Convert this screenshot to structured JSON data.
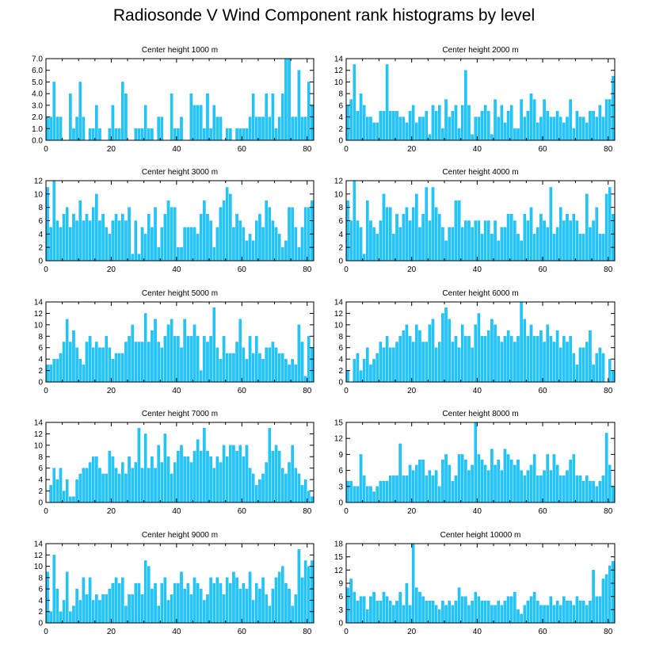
{
  "title": "Radiosonde V Wind Component rank histograms by level",
  "colors": {
    "bar": "#1ec8ff",
    "bar_edge": "#0a9fd6",
    "axis": "#000000"
  },
  "chart_data": [
    {
      "type": "bar",
      "title": "Center height 1000 m",
      "xlim": [
        0,
        82
      ],
      "ylim": [
        0,
        7
      ],
      "xticks": [
        0,
        20,
        40,
        60,
        80
      ],
      "yticks": [
        0,
        1,
        2,
        3,
        4,
        5,
        6,
        7
      ],
      "ytick_labels": [
        "0.0",
        "1.0",
        "2.0",
        "3.0",
        "4.0",
        "5.0",
        "6.0",
        "7.0"
      ],
      "values": [
        2,
        2,
        5,
        2,
        2,
        0,
        0,
        4,
        1,
        2,
        5,
        2,
        0,
        1,
        1,
        3,
        1,
        0,
        0,
        1,
        3,
        1,
        1,
        5,
        4,
        0,
        0,
        1,
        1,
        1,
        3,
        1,
        1,
        0,
        2,
        2,
        0,
        0,
        4,
        1,
        1,
        2,
        0,
        0,
        4,
        3,
        3,
        3,
        1,
        4,
        1,
        3,
        2,
        2,
        0,
        1,
        1,
        0,
        1,
        1,
        1,
        1,
        2,
        4,
        2,
        2,
        2,
        4,
        2,
        4,
        1,
        2,
        4,
        7,
        7,
        2,
        2,
        6,
        2,
        2,
        5,
        3
      ]
    },
    {
      "type": "bar",
      "title": "Center height 2000 m",
      "xlim": [
        0,
        82
      ],
      "ylim": [
        0,
        14
      ],
      "xticks": [
        0,
        20,
        40,
        60,
        80
      ],
      "yticks": [
        0,
        2,
        4,
        6,
        8,
        10,
        12,
        14
      ],
      "values": [
        6,
        7,
        13,
        5,
        8,
        6,
        4,
        4,
        3,
        3,
        5,
        5,
        13,
        5,
        5,
        5,
        4,
        4,
        3,
        5,
        6,
        3,
        4,
        4,
        5,
        1,
        6,
        5,
        6,
        2,
        7,
        4,
        5,
        6,
        2,
        6,
        12,
        6,
        1,
        4,
        4,
        5,
        6,
        5,
        1,
        7,
        4,
        6,
        3,
        5,
        6,
        2,
        2,
        7,
        4,
        5,
        8,
        7,
        3,
        4,
        7,
        5,
        4,
        4,
        5,
        4,
        3,
        4,
        7,
        2,
        5,
        4,
        4,
        3,
        5,
        5,
        4,
        6,
        4,
        7,
        7,
        11
      ]
    },
    {
      "type": "bar",
      "title": "Center height 3000 m",
      "xlim": [
        0,
        82
      ],
      "ylim": [
        0,
        12
      ],
      "xticks": [
        0,
        20,
        40,
        60,
        80
      ],
      "yticks": [
        0,
        2,
        4,
        6,
        8,
        10,
        12
      ],
      "values": [
        11,
        5,
        12,
        6,
        5,
        7,
        8,
        5,
        7,
        6,
        9,
        6,
        7,
        6,
        8,
        10,
        6,
        7,
        5,
        4,
        6,
        7,
        6,
        7,
        6,
        8,
        1,
        6,
        1,
        5,
        4,
        7,
        5,
        8,
        2,
        5,
        7,
        9,
        8,
        8,
        2,
        2,
        5,
        5,
        5,
        5,
        4,
        7,
        9,
        7,
        6,
        2,
        5,
        8,
        9,
        11,
        10,
        5,
        7,
        6,
        5,
        3,
        4,
        3,
        6,
        7,
        5,
        9,
        8,
        6,
        5,
        4,
        2,
        3,
        8,
        8,
        5,
        2,
        5,
        8,
        8,
        9
      ]
    },
    {
      "type": "bar",
      "title": "Center height 4000 m",
      "xlim": [
        0,
        82
      ],
      "ylim": [
        0,
        12
      ],
      "xticks": [
        0,
        20,
        40,
        60,
        80
      ],
      "yticks": [
        0,
        2,
        4,
        6,
        8,
        10,
        12
      ],
      "values": [
        9,
        6,
        12,
        6,
        5,
        1,
        9,
        6,
        5,
        4,
        6,
        10,
        8,
        8,
        4,
        7,
        5,
        7,
        8,
        6,
        8,
        10,
        5,
        7,
        11,
        6,
        11,
        8,
        7,
        5,
        3,
        5,
        5,
        9,
        9,
        5,
        6,
        6,
        5,
        6,
        6,
        4,
        6,
        6,
        4,
        6,
        3,
        5,
        5,
        7,
        7,
        6,
        4,
        3,
        7,
        6,
        8,
        4,
        5,
        7,
        6,
        5,
        11,
        4,
        5,
        8,
        6,
        7,
        6,
        7,
        6,
        4,
        4,
        10,
        5,
        6,
        8,
        4,
        4,
        10,
        11,
        7
      ]
    },
    {
      "type": "bar",
      "title": "Center height 5000 m",
      "xlim": [
        0,
        82
      ],
      "ylim": [
        0,
        14
      ],
      "xticks": [
        0,
        20,
        40,
        60,
        80
      ],
      "yticks": [
        0,
        2,
        4,
        6,
        8,
        10,
        12,
        14
      ],
      "values": [
        3,
        3,
        4,
        4,
        5,
        7,
        11,
        7,
        9,
        6,
        4,
        3,
        7,
        8,
        6,
        7,
        6,
        6,
        8,
        6,
        4,
        5,
        5,
        5,
        7,
        8,
        10,
        7,
        7,
        7,
        12,
        7,
        9,
        11,
        7,
        6,
        8,
        10,
        11,
        8,
        8,
        6,
        11,
        8,
        8,
        10,
        8,
        2,
        8,
        7,
        8,
        13,
        6,
        4,
        8,
        5,
        5,
        5,
        7,
        11,
        6,
        4,
        8,
        5,
        8,
        5,
        4,
        6,
        6,
        7,
        6,
        5,
        5,
        4,
        3,
        4,
        3,
        10,
        7,
        1,
        8,
        6
      ]
    },
    {
      "type": "bar",
      "title": "Center height 6000 m",
      "xlim": [
        0,
        82
      ],
      "ylim": [
        0,
        14
      ],
      "xticks": [
        0,
        20,
        40,
        60,
        80
      ],
      "yticks": [
        0,
        2,
        4,
        6,
        8,
        10,
        12,
        14
      ],
      "values": [
        2,
        0,
        4,
        5,
        2,
        4,
        6,
        3,
        4,
        5,
        7,
        6,
        8,
        6,
        6,
        7,
        8,
        9,
        10,
        8,
        7,
        10,
        9,
        7,
        7,
        10,
        11,
        6,
        7,
        12,
        13,
        11,
        7,
        8,
        6,
        10,
        8,
        8,
        6,
        10,
        12,
        8,
        8,
        9,
        11,
        10,
        8,
        7,
        8,
        9,
        8,
        7,
        8,
        14,
        11,
        8,
        10,
        8,
        8,
        9,
        7,
        10,
        8,
        7,
        9,
        6,
        8,
        7,
        8,
        5,
        3,
        6,
        6,
        7,
        9,
        3,
        5,
        6,
        5,
        0,
        4,
        2
      ]
    },
    {
      "type": "bar",
      "title": "Center height 7000 m",
      "xlim": [
        0,
        82
      ],
      "ylim": [
        0,
        14
      ],
      "xticks": [
        0,
        20,
        40,
        60,
        80
      ],
      "yticks": [
        0,
        2,
        4,
        6,
        8,
        10,
        12,
        14
      ],
      "values": [
        0,
        3,
        6,
        4,
        6,
        2,
        4,
        1,
        1,
        4,
        5,
        6,
        6,
        7,
        8,
        8,
        6,
        5,
        5,
        9,
        8,
        6,
        5,
        7,
        5,
        8,
        6,
        7,
        13,
        6,
        12,
        6,
        8,
        6,
        10,
        7,
        12,
        8,
        5,
        7,
        9,
        10,
        8,
        8,
        7,
        9,
        11,
        9,
        13,
        9,
        8,
        6,
        8,
        7,
        10,
        8,
        10,
        10,
        9,
        10,
        8,
        10,
        6,
        5,
        3,
        4,
        5,
        7,
        13,
        9,
        10,
        9,
        6,
        5,
        7,
        10,
        6,
        5,
        3,
        4,
        2,
        1
      ]
    },
    {
      "type": "bar",
      "title": "Center height 8000 m",
      "xlim": [
        0,
        82
      ],
      "ylim": [
        0,
        15
      ],
      "xticks": [
        0,
        20,
        40,
        60,
        80
      ],
      "yticks": [
        0,
        3,
        6,
        9,
        12,
        15
      ],
      "values": [
        4,
        4,
        3,
        3,
        9,
        5,
        3,
        3,
        2,
        3,
        4,
        4,
        4,
        5,
        5,
        5,
        11,
        5,
        5,
        7,
        6,
        7,
        8,
        8,
        5,
        6,
        5,
        6,
        3,
        8,
        9,
        7,
        4,
        5,
        9,
        9,
        8,
        6,
        7,
        15,
        9,
        8,
        7,
        6,
        10,
        7,
        8,
        6,
        10,
        9,
        8,
        7,
        8,
        6,
        5,
        6,
        7,
        9,
        5,
        5,
        6,
        9,
        6,
        9,
        7,
        5,
        5,
        6,
        8,
        9,
        5,
        5,
        4,
        5,
        4,
        4,
        3,
        4,
        5,
        13,
        7,
        3
      ]
    },
    {
      "type": "bar",
      "title": "Center height 9000 m",
      "xlim": [
        0,
        82
      ],
      "ylim": [
        0,
        14
      ],
      "xticks": [
        0,
        20,
        40,
        60,
        80
      ],
      "yticks": [
        0,
        2,
        4,
        6,
        8,
        10,
        12,
        14
      ],
      "values": [
        9,
        2,
        12,
        6,
        2,
        4,
        9,
        2,
        3,
        6,
        4,
        8,
        5,
        8,
        4,
        5,
        4,
        5,
        5,
        6,
        7,
        8,
        7,
        8,
        3,
        5,
        5,
        7,
        7,
        5,
        11,
        10,
        6,
        7,
        3,
        7,
        8,
        4,
        5,
        7,
        7,
        9,
        6,
        7,
        5,
        8,
        7,
        6,
        4,
        5,
        8,
        7,
        8,
        7,
        5,
        8,
        7,
        9,
        8,
        6,
        7,
        6,
        9,
        4,
        7,
        6,
        8,
        5,
        3,
        6,
        8,
        9,
        10,
        7,
        6,
        3,
        5,
        13,
        8,
        11,
        10,
        11
      ]
    },
    {
      "type": "bar",
      "title": "Center height 10000 m",
      "xlim": [
        0,
        82
      ],
      "ylim": [
        0,
        18
      ],
      "xticks": [
        0,
        20,
        40,
        60,
        80
      ],
      "yticks": [
        0,
        3,
        6,
        9,
        12,
        15,
        18
      ],
      "values": [
        8,
        10,
        7,
        5,
        6,
        6,
        3,
        6,
        7,
        5,
        5,
        7,
        6,
        5,
        4,
        5,
        7,
        4,
        9,
        4,
        18,
        8,
        7,
        6,
        5,
        5,
        5,
        4,
        3,
        5,
        4,
        5,
        4,
        5,
        8,
        6,
        6,
        4,
        5,
        7,
        6,
        5,
        5,
        5,
        4,
        4,
        5,
        4,
        5,
        6,
        6,
        7,
        3,
        2,
        4,
        5,
        6,
        7,
        5,
        4,
        4,
        4,
        6,
        4,
        5,
        4,
        6,
        5,
        5,
        4,
        6,
        5,
        5,
        4,
        5,
        12,
        6,
        6,
        10,
        11,
        13,
        14
      ]
    }
  ]
}
